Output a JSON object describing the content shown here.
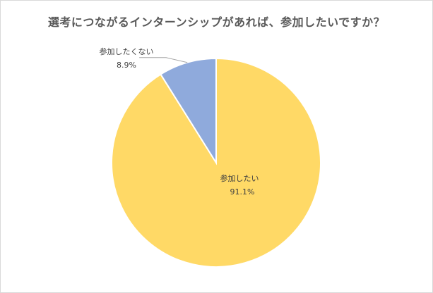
{
  "chart_data": {
    "type": "pie",
    "title": "選考につながるインターンシップがあれば、参加したいですか？",
    "slices": [
      {
        "label": "参加したい",
        "value": 91.1,
        "display": "91.1%",
        "color": "#ffd966"
      },
      {
        "label": "参加したくない",
        "value": 8.9,
        "display": "8.9%",
        "color": "#8faadc"
      }
    ],
    "legend": "none",
    "label_style": "category name and percentage"
  }
}
